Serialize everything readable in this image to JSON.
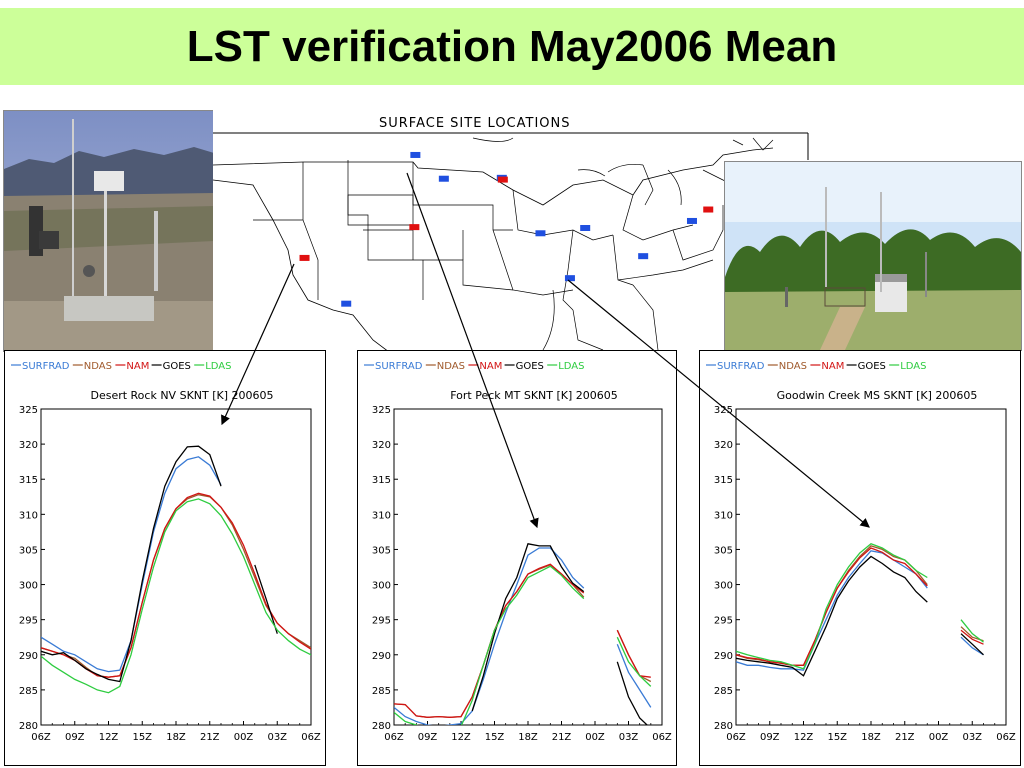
{
  "slide_title": "LST verification May2006 Mean",
  "map": {
    "title": "SURFACE SITE LOCATIONS",
    "colors": {
      "surfrad_site": "#1f4fe0",
      "other_site": "#e01010"
    },
    "sites": [
      {
        "kind": "surfrad",
        "lon": -105.1,
        "lat": 48.3
      },
      {
        "kind": "surfrad",
        "lon": -102.3,
        "lat": 45.6
      },
      {
        "kind": "surfrad",
        "lon": -96.6,
        "lat": 45.7
      },
      {
        "kind": "other",
        "lon": -96.5,
        "lat": 45.5
      },
      {
        "kind": "other",
        "lon": -105.2,
        "lat": 40.1
      },
      {
        "kind": "surfrad",
        "lon": -92.8,
        "lat": 39.4
      },
      {
        "kind": "surfrad",
        "lon": -88.4,
        "lat": 40.0
      },
      {
        "kind": "surfrad",
        "lon": -77.9,
        "lat": 40.8
      },
      {
        "kind": "other",
        "lon": -76.3,
        "lat": 42.1
      },
      {
        "kind": "surfrad",
        "lon": -82.7,
        "lat": 36.8
      },
      {
        "kind": "surfrad",
        "lon": -89.9,
        "lat": 34.3
      },
      {
        "kind": "other",
        "lon": -116.0,
        "lat": 36.6
      },
      {
        "kind": "surfrad",
        "lon": -111.9,
        "lat": 31.4
      }
    ]
  },
  "legend": [
    {
      "name": "SURFRAD",
      "color": "#3a7bd5"
    },
    {
      "name": "NDAS",
      "color": "#a05a2c"
    },
    {
      "name": "NAM",
      "color": "#d21414"
    },
    {
      "name": "GOES",
      "color": "#000000"
    },
    {
      "name": "LDAS",
      "color": "#2ecc40"
    }
  ],
  "chart_data": [
    {
      "type": "line",
      "title": "Desert Rock NV SKNT [K] 200605",
      "x": [
        "06Z",
        "07Z",
        "08Z",
        "09Z",
        "10Z",
        "11Z",
        "12Z",
        "13Z",
        "14Z",
        "15Z",
        "16Z",
        "17Z",
        "18Z",
        "19Z",
        "20Z",
        "21Z",
        "22Z",
        "23Z",
        "00Z",
        "01Z",
        "02Z",
        "03Z",
        "04Z",
        "05Z",
        "06Z"
      ],
      "xticks": [
        "06Z",
        "09Z",
        "12Z",
        "15Z",
        "18Z",
        "21Z",
        "00Z",
        "03Z",
        "06Z"
      ],
      "ylim": [
        280,
        325
      ],
      "yticks": [
        280,
        285,
        290,
        295,
        300,
        305,
        310,
        315,
        320,
        325
      ],
      "series": [
        {
          "name": "SURFRAD",
          "values": [
            292.5,
            291.5,
            290.5,
            290.0,
            289.0,
            288.0,
            287.6,
            287.8,
            292.0,
            300.0,
            307.5,
            313.0,
            316.5,
            317.8,
            318.2,
            317.0,
            314.2,
            null,
            null,
            null,
            null,
            null,
            null,
            null,
            null
          ]
        },
        {
          "name": "NDAS",
          "values": [
            291.0,
            290.5,
            290.0,
            289.5,
            288.2,
            287.0,
            286.8,
            287.0,
            291.0,
            297.5,
            303.5,
            308.0,
            310.8,
            312.2,
            312.8,
            312.5,
            311.0,
            308.5,
            305.0,
            301.0,
            297.0,
            294.5,
            293.0,
            292.0,
            291.0
          ]
        },
        {
          "name": "NAM",
          "values": [
            291.0,
            290.5,
            290.0,
            289.2,
            288.0,
            287.0,
            286.8,
            287.0,
            291.0,
            297.5,
            303.5,
            308.0,
            310.8,
            312.4,
            313.0,
            312.6,
            311.0,
            308.8,
            305.6,
            301.5,
            297.2,
            294.5,
            293.0,
            291.8,
            290.8
          ]
        },
        {
          "name": "GOES",
          "values": [
            290.5,
            290.0,
            290.3,
            289.2,
            288.0,
            287.2,
            286.5,
            286.2,
            292.0,
            300.5,
            308.0,
            314.0,
            317.5,
            319.6,
            319.7,
            318.5,
            314.0,
            null,
            null,
            302.8,
            298.0,
            293.0,
            null,
            null,
            null
          ]
        },
        {
          "name": "LDAS",
          "values": [
            289.8,
            288.5,
            287.5,
            286.5,
            285.8,
            285.0,
            284.6,
            285.5,
            290.0,
            296.5,
            302.5,
            307.5,
            310.5,
            311.8,
            312.2,
            311.5,
            309.8,
            307.2,
            304.0,
            300.0,
            296.0,
            293.5,
            292.0,
            290.8,
            290.0
          ]
        }
      ]
    },
    {
      "type": "line",
      "title": "Fort Peck MT SKNT [K] 200605",
      "x": [
        "06Z",
        "07Z",
        "08Z",
        "09Z",
        "10Z",
        "11Z",
        "12Z",
        "13Z",
        "14Z",
        "15Z",
        "16Z",
        "17Z",
        "18Z",
        "19Z",
        "20Z",
        "21Z",
        "22Z",
        "23Z",
        "00Z",
        "01Z",
        "02Z",
        "03Z",
        "04Z",
        "05Z",
        "06Z"
      ],
      "xticks": [
        "06Z",
        "09Z",
        "12Z",
        "15Z",
        "18Z",
        "21Z",
        "00Z",
        "03Z",
        "06Z"
      ],
      "ylim": [
        280,
        325
      ],
      "yticks": [
        280,
        285,
        290,
        295,
        300,
        305,
        310,
        315,
        320,
        325
      ],
      "series": [
        {
          "name": "SURFRAD",
          "values": [
            282.5,
            281.2,
            280.5,
            280.0,
            279.8,
            280.0,
            280.2,
            282.0,
            286.5,
            291.5,
            296.0,
            300.0,
            304.2,
            305.2,
            305.2,
            303.5,
            301.0,
            299.5,
            null,
            null,
            291.5,
            287.5,
            285.0,
            282.5,
            null
          ]
        },
        {
          "name": "NDAS",
          "values": [
            283.0,
            282.9,
            281.3,
            281.1,
            281.2,
            281.1,
            281.2,
            284.0,
            288.5,
            293.5,
            297.0,
            299.0,
            301.5,
            302.2,
            302.8,
            301.5,
            300.0,
            298.2,
            null,
            null,
            293.5,
            290.0,
            287.0,
            286.2,
            null
          ]
        },
        {
          "name": "NAM",
          "values": [
            283.0,
            282.9,
            281.3,
            281.1,
            281.2,
            281.1,
            281.2,
            284.0,
            288.5,
            293.5,
            297.0,
            299.0,
            301.5,
            302.3,
            302.9,
            301.5,
            300.0,
            298.8,
            null,
            null,
            293.5,
            290.0,
            287.0,
            286.8,
            null
          ]
        },
        {
          "name": "GOES",
          "values": [
            null,
            null,
            null,
            null,
            null,
            null,
            null,
            282.0,
            287.0,
            293.0,
            298.0,
            301.0,
            305.8,
            305.5,
            305.5,
            302.5,
            300.2,
            299.0,
            null,
            null,
            289.0,
            284.0,
            281.0,
            279.5,
            null
          ]
        },
        {
          "name": "LDAS",
          "values": [
            281.8,
            280.5,
            280.0,
            279.5,
            279.3,
            279.5,
            279.8,
            283.5,
            288.5,
            293.5,
            296.5,
            298.5,
            301.0,
            301.8,
            302.6,
            301.3,
            299.5,
            298.0,
            null,
            null,
            292.5,
            289.0,
            287.0,
            285.5,
            null
          ]
        }
      ]
    },
    {
      "type": "line",
      "title": "Goodwin Creek MS SKNT [K] 200605",
      "x": [
        "06Z",
        "07Z",
        "08Z",
        "09Z",
        "10Z",
        "11Z",
        "12Z",
        "13Z",
        "14Z",
        "15Z",
        "16Z",
        "17Z",
        "18Z",
        "19Z",
        "20Z",
        "21Z",
        "22Z",
        "23Z",
        "00Z",
        "01Z",
        "02Z",
        "03Z",
        "04Z",
        "05Z",
        "06Z"
      ],
      "xticks": [
        "06Z",
        "09Z",
        "12Z",
        "15Z",
        "18Z",
        "21Z",
        "00Z",
        "03Z",
        "06Z"
      ],
      "ylim": [
        280,
        325
      ],
      "yticks": [
        280,
        285,
        290,
        295,
        300,
        305,
        310,
        315,
        320,
        325
      ],
      "series": [
        {
          "name": "SURFRAD",
          "values": [
            289.0,
            288.5,
            288.5,
            288.2,
            288.0,
            288.0,
            287.8,
            291.5,
            295.0,
            298.5,
            301.0,
            303.0,
            304.8,
            304.5,
            303.5,
            302.5,
            301.5,
            299.5,
            null,
            null,
            292.5,
            291.0,
            290.0,
            null,
            null
          ]
        },
        {
          "name": "NDAS",
          "values": [
            290.0,
            289.5,
            289.3,
            289.0,
            288.8,
            288.5,
            288.5,
            292.0,
            296.0,
            299.5,
            302.0,
            304.0,
            305.5,
            305.0,
            304.0,
            303.5,
            302.0,
            300.0,
            null,
            null,
            294.0,
            292.5,
            292.0,
            null,
            null
          ]
        },
        {
          "name": "NAM",
          "values": [
            290.0,
            289.6,
            289.4,
            289.0,
            288.8,
            288.5,
            288.5,
            292.0,
            296.0,
            299.5,
            301.8,
            303.8,
            305.2,
            304.6,
            303.5,
            303.0,
            301.5,
            299.8,
            null,
            null,
            293.5,
            292.2,
            291.5,
            null,
            null
          ]
        },
        {
          "name": "GOES",
          "values": [
            289.5,
            289.2,
            289.0,
            288.8,
            288.5,
            288.2,
            287.0,
            290.5,
            294.0,
            298.0,
            300.5,
            302.5,
            304.0,
            303.0,
            301.8,
            301.0,
            299.0,
            297.5,
            null,
            null,
            293.0,
            291.5,
            290.0,
            null,
            null
          ]
        },
        {
          "name": "LDAS",
          "values": [
            290.5,
            290.0,
            289.6,
            289.2,
            289.0,
            288.5,
            288.0,
            291.5,
            296.5,
            300.0,
            302.5,
            304.5,
            305.8,
            305.2,
            304.2,
            303.5,
            302.0,
            301.0,
            null,
            null,
            295.0,
            293.0,
            291.8,
            null,
            null
          ]
        }
      ]
    }
  ]
}
